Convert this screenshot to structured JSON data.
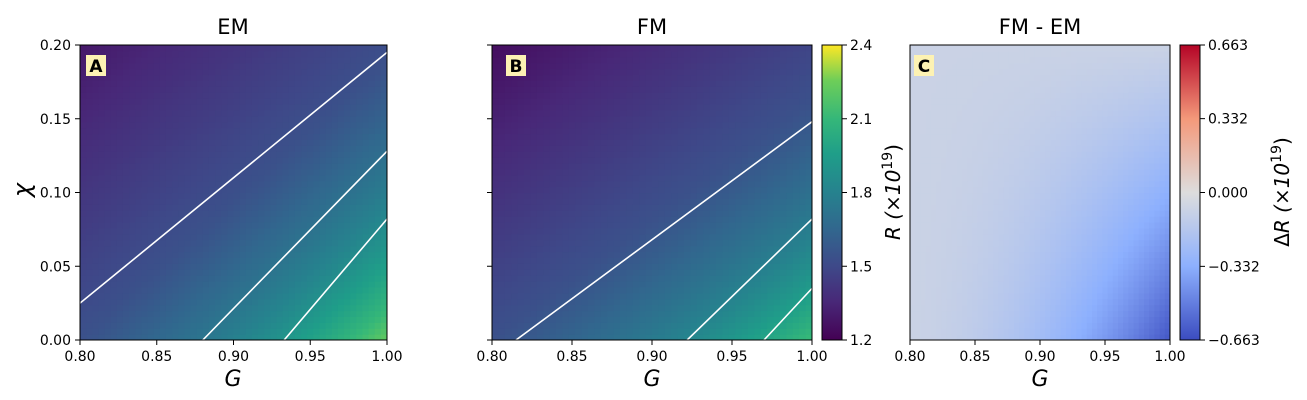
{
  "chart_data": [
    {
      "type": "heatmap",
      "panel_label": "A",
      "title": "EM",
      "xlabel": "G",
      "ylabel": "χ",
      "xlim": [
        0.8,
        1.0
      ],
      "ylim": [
        0.0,
        0.2
      ],
      "xticks": [
        "0.80",
        "0.85",
        "0.90",
        "0.95",
        "1.00"
      ],
      "yticks": [
        "0.00",
        "0.05",
        "0.10",
        "0.15",
        "0.20"
      ],
      "colorscale": "viridis",
      "value_range": [
        1.2,
        2.4
      ],
      "contours": [
        {
          "level": 1.5,
          "x": [
            0.8,
            1.0
          ],
          "y": [
            0.025,
            0.195
          ]
        },
        {
          "level": 1.8,
          "x": [
            0.88,
            1.0
          ],
          "y": [
            0.0,
            0.128
          ]
        },
        {
          "level": 2.1,
          "x": [
            0.933,
            1.0
          ],
          "y": [
            0.0,
            0.082
          ]
        }
      ],
      "grid": false
    },
    {
      "type": "heatmap",
      "panel_label": "B",
      "title": "FM",
      "xlabel": "G",
      "ylabel": "",
      "xlim": [
        0.8,
        1.0
      ],
      "ylim": [
        0.0,
        0.2
      ],
      "xticks": [
        "0.80",
        "0.85",
        "0.90",
        "0.95",
        "1.00"
      ],
      "colorscale": "viridis",
      "value_range": [
        1.2,
        2.4
      ],
      "colorbar": {
        "ticks": [
          "1.2",
          "1.5",
          "1.8",
          "2.1",
          "2.4"
        ],
        "label": "R (×10^19)"
      },
      "contours": [
        {
          "level": 1.5,
          "x": [
            0.815,
            1.0
          ],
          "y": [
            0.0,
            0.148
          ]
        },
        {
          "level": 1.8,
          "x": [
            0.922,
            1.0
          ],
          "y": [
            0.0,
            0.082
          ]
        },
        {
          "level": 2.1,
          "x": [
            0.97,
            1.0
          ],
          "y": [
            0.0,
            0.035
          ]
        }
      ],
      "grid": false
    },
    {
      "type": "heatmap",
      "panel_label": "C",
      "title": "FM - EM",
      "xlabel": "G",
      "ylabel": "",
      "xlim": [
        0.8,
        1.0
      ],
      "ylim": [
        0.0,
        0.2
      ],
      "xticks": [
        "0.80",
        "0.85",
        "0.90",
        "0.95",
        "1.00"
      ],
      "colorscale": "coolwarm",
      "value_range": [
        -0.663,
        0.663
      ],
      "colorbar": {
        "ticks": [
          "0.663",
          "0.332",
          "0.000",
          "−0.332",
          "−0.663"
        ],
        "label": "ΔR (×10^19)"
      },
      "grid": false
    }
  ]
}
